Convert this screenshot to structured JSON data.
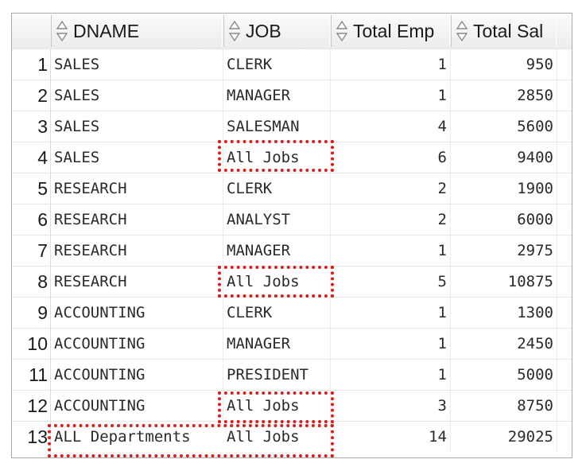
{
  "headers": {
    "dname": "DNAME",
    "job": "JOB",
    "total_emp": "Total Emp",
    "total_sal": "Total Sal"
  },
  "rows": [
    {
      "n": "1",
      "dname": "SALES",
      "job": "CLERK",
      "emp": "1",
      "sal": "950"
    },
    {
      "n": "2",
      "dname": "SALES",
      "job": "MANAGER",
      "emp": "1",
      "sal": "2850"
    },
    {
      "n": "3",
      "dname": "SALES",
      "job": "SALESMAN",
      "emp": "4",
      "sal": "5600"
    },
    {
      "n": "4",
      "dname": "SALES",
      "job": "All Jobs",
      "emp": "6",
      "sal": "9400"
    },
    {
      "n": "5",
      "dname": "RESEARCH",
      "job": "CLERK",
      "emp": "2",
      "sal": "1900"
    },
    {
      "n": "6",
      "dname": "RESEARCH",
      "job": "ANALYST",
      "emp": "2",
      "sal": "6000"
    },
    {
      "n": "7",
      "dname": "RESEARCH",
      "job": "MANAGER",
      "emp": "1",
      "sal": "2975"
    },
    {
      "n": "8",
      "dname": "RESEARCH",
      "job": "All Jobs",
      "emp": "5",
      "sal": "10875"
    },
    {
      "n": "9",
      "dname": "ACCOUNTING",
      "job": "CLERK",
      "emp": "1",
      "sal": "1300"
    },
    {
      "n": "10",
      "dname": "ACCOUNTING",
      "job": "MANAGER",
      "emp": "1",
      "sal": "2450"
    },
    {
      "n": "11",
      "dname": "ACCOUNTING",
      "job": "PRESIDENT",
      "emp": "1",
      "sal": "5000"
    },
    {
      "n": "12",
      "dname": "ACCOUNTING",
      "job": "All Jobs",
      "emp": "3",
      "sal": "8750"
    },
    {
      "n": "13",
      "dname": "ALL Departments",
      "job": "All Jobs",
      "emp": "14",
      "sal": "29025"
    }
  ],
  "colors": {
    "highlight_border": "#d61f1f"
  }
}
